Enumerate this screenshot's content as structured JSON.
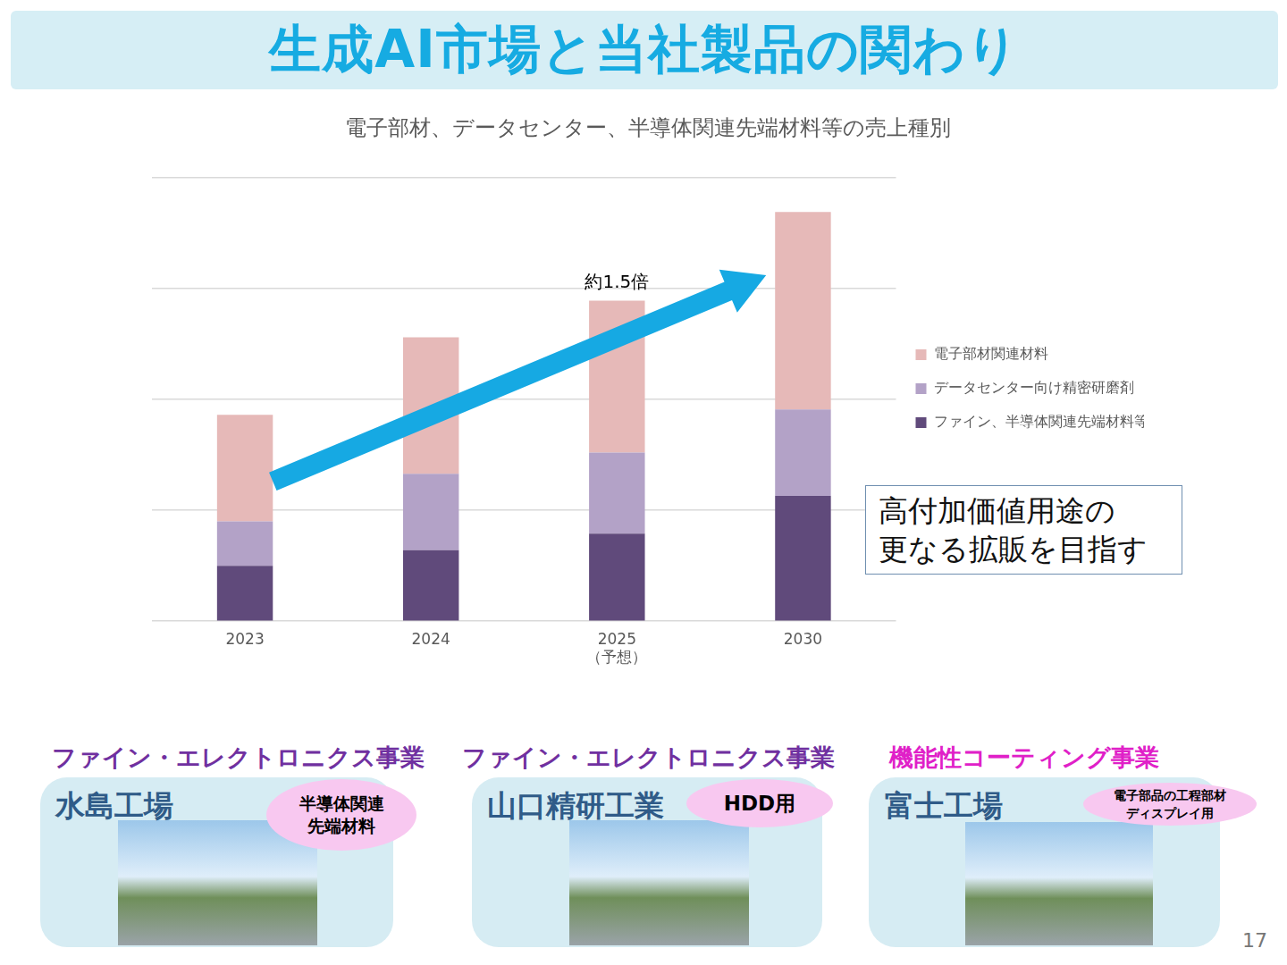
{
  "page": {
    "title": "生成AI市場と当社製品の関わり",
    "callout": {
      "lines": [
        "高付加価値用途の",
        "更なる拡販を目指す"
      ]
    },
    "sites": [
      {
        "division": "ファイン・エレクトロニクス事業",
        "color": "#7030a0",
        "name": "水島工場",
        "badge": [
          "半導体関連",
          "先端材料"
        ]
      },
      {
        "division": "ファイン・エレクトロニクス事業",
        "color": "#7030a0",
        "name": "山口精研工業",
        "badge": [
          "HDD用"
        ]
      },
      {
        "division": "機能性コーティング事業",
        "color": "#e020c8",
        "name": "富士工場",
        "badge": [
          "電子部品の工程部材",
          "ディスプレイ用"
        ]
      }
    ],
    "page_number": "17"
  },
  "chart_data": {
    "type": "bar",
    "stacked": true,
    "title": "電子部材、データセンター、半導体関連先端材料等の売上種別",
    "categories": [
      "2023",
      "2024",
      "2025\n（予想）",
      "2030"
    ],
    "series": [
      {
        "name": "ファイン、半導体関連先端材料等",
        "color": "#604a7b",
        "values": [
          0.5,
          0.64,
          0.79,
          1.13
        ]
      },
      {
        "name": "データセンター向け精密研磨剤",
        "color": "#b3a2c7",
        "values": [
          0.4,
          0.69,
          0.73,
          0.78
        ]
      },
      {
        "name": "電子部材関連材料",
        "color": "#e6b9b8",
        "values": [
          0.96,
          1.23,
          1.37,
          1.78
        ]
      }
    ],
    "ylim": [
      0,
      4
    ],
    "yticks": [
      0,
      1,
      2,
      3,
      4
    ],
    "grid": true,
    "tick_labels": "x",
    "legend": "right",
    "annotations": [
      {
        "text": "約1.5倍",
        "category": "2025\n（予想）"
      }
    ]
  }
}
